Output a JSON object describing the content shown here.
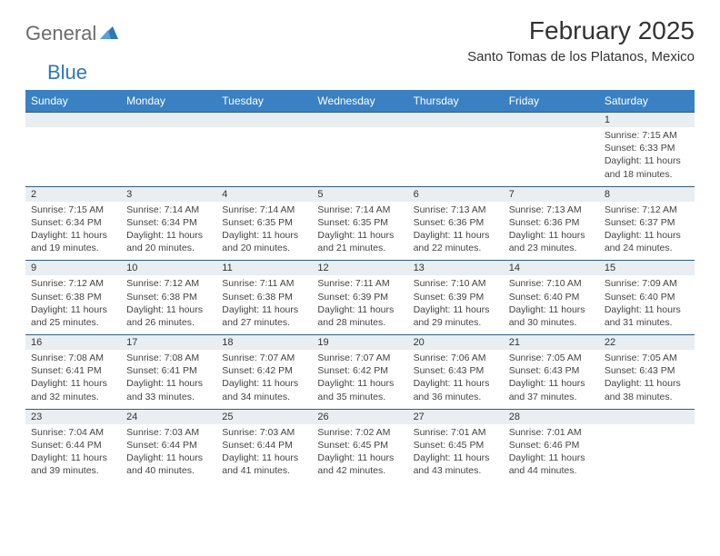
{
  "brand": {
    "general": "General",
    "blue": "Blue"
  },
  "title": "February 2025",
  "location": "Santo Tomas de los Platanos, Mexico",
  "colors": {
    "header_bg": "#3a81c4",
    "header_text": "#ffffff",
    "daynum_bg": "#e9eef2",
    "daynum_border": "#2f5e84",
    "body_text": "#444444",
    "logo_gray": "#6b6b6b",
    "logo_blue": "#2f78b7"
  },
  "day_headers": [
    "Sunday",
    "Monday",
    "Tuesday",
    "Wednesday",
    "Thursday",
    "Friday",
    "Saturday"
  ],
  "weeks": [
    [
      {
        "n": "",
        "sr": "",
        "ss": "",
        "dl": ""
      },
      {
        "n": "",
        "sr": "",
        "ss": "",
        "dl": ""
      },
      {
        "n": "",
        "sr": "",
        "ss": "",
        "dl": ""
      },
      {
        "n": "",
        "sr": "",
        "ss": "",
        "dl": ""
      },
      {
        "n": "",
        "sr": "",
        "ss": "",
        "dl": ""
      },
      {
        "n": "",
        "sr": "",
        "ss": "",
        "dl": ""
      },
      {
        "n": "1",
        "sr": "Sunrise: 7:15 AM",
        "ss": "Sunset: 6:33 PM",
        "dl": "Daylight: 11 hours and 18 minutes."
      }
    ],
    [
      {
        "n": "2",
        "sr": "Sunrise: 7:15 AM",
        "ss": "Sunset: 6:34 PM",
        "dl": "Daylight: 11 hours and 19 minutes."
      },
      {
        "n": "3",
        "sr": "Sunrise: 7:14 AM",
        "ss": "Sunset: 6:34 PM",
        "dl": "Daylight: 11 hours and 20 minutes."
      },
      {
        "n": "4",
        "sr": "Sunrise: 7:14 AM",
        "ss": "Sunset: 6:35 PM",
        "dl": "Daylight: 11 hours and 20 minutes."
      },
      {
        "n": "5",
        "sr": "Sunrise: 7:14 AM",
        "ss": "Sunset: 6:35 PM",
        "dl": "Daylight: 11 hours and 21 minutes."
      },
      {
        "n": "6",
        "sr": "Sunrise: 7:13 AM",
        "ss": "Sunset: 6:36 PM",
        "dl": "Daylight: 11 hours and 22 minutes."
      },
      {
        "n": "7",
        "sr": "Sunrise: 7:13 AM",
        "ss": "Sunset: 6:36 PM",
        "dl": "Daylight: 11 hours and 23 minutes."
      },
      {
        "n": "8",
        "sr": "Sunrise: 7:12 AM",
        "ss": "Sunset: 6:37 PM",
        "dl": "Daylight: 11 hours and 24 minutes."
      }
    ],
    [
      {
        "n": "9",
        "sr": "Sunrise: 7:12 AM",
        "ss": "Sunset: 6:38 PM",
        "dl": "Daylight: 11 hours and 25 minutes."
      },
      {
        "n": "10",
        "sr": "Sunrise: 7:12 AM",
        "ss": "Sunset: 6:38 PM",
        "dl": "Daylight: 11 hours and 26 minutes."
      },
      {
        "n": "11",
        "sr": "Sunrise: 7:11 AM",
        "ss": "Sunset: 6:38 PM",
        "dl": "Daylight: 11 hours and 27 minutes."
      },
      {
        "n": "12",
        "sr": "Sunrise: 7:11 AM",
        "ss": "Sunset: 6:39 PM",
        "dl": "Daylight: 11 hours and 28 minutes."
      },
      {
        "n": "13",
        "sr": "Sunrise: 7:10 AM",
        "ss": "Sunset: 6:39 PM",
        "dl": "Daylight: 11 hours and 29 minutes."
      },
      {
        "n": "14",
        "sr": "Sunrise: 7:10 AM",
        "ss": "Sunset: 6:40 PM",
        "dl": "Daylight: 11 hours and 30 minutes."
      },
      {
        "n": "15",
        "sr": "Sunrise: 7:09 AM",
        "ss": "Sunset: 6:40 PM",
        "dl": "Daylight: 11 hours and 31 minutes."
      }
    ],
    [
      {
        "n": "16",
        "sr": "Sunrise: 7:08 AM",
        "ss": "Sunset: 6:41 PM",
        "dl": "Daylight: 11 hours and 32 minutes."
      },
      {
        "n": "17",
        "sr": "Sunrise: 7:08 AM",
        "ss": "Sunset: 6:41 PM",
        "dl": "Daylight: 11 hours and 33 minutes."
      },
      {
        "n": "18",
        "sr": "Sunrise: 7:07 AM",
        "ss": "Sunset: 6:42 PM",
        "dl": "Daylight: 11 hours and 34 minutes."
      },
      {
        "n": "19",
        "sr": "Sunrise: 7:07 AM",
        "ss": "Sunset: 6:42 PM",
        "dl": "Daylight: 11 hours and 35 minutes."
      },
      {
        "n": "20",
        "sr": "Sunrise: 7:06 AM",
        "ss": "Sunset: 6:43 PM",
        "dl": "Daylight: 11 hours and 36 minutes."
      },
      {
        "n": "21",
        "sr": "Sunrise: 7:05 AM",
        "ss": "Sunset: 6:43 PM",
        "dl": "Daylight: 11 hours and 37 minutes."
      },
      {
        "n": "22",
        "sr": "Sunrise: 7:05 AM",
        "ss": "Sunset: 6:43 PM",
        "dl": "Daylight: 11 hours and 38 minutes."
      }
    ],
    [
      {
        "n": "23",
        "sr": "Sunrise: 7:04 AM",
        "ss": "Sunset: 6:44 PM",
        "dl": "Daylight: 11 hours and 39 minutes."
      },
      {
        "n": "24",
        "sr": "Sunrise: 7:03 AM",
        "ss": "Sunset: 6:44 PM",
        "dl": "Daylight: 11 hours and 40 minutes."
      },
      {
        "n": "25",
        "sr": "Sunrise: 7:03 AM",
        "ss": "Sunset: 6:44 PM",
        "dl": "Daylight: 11 hours and 41 minutes."
      },
      {
        "n": "26",
        "sr": "Sunrise: 7:02 AM",
        "ss": "Sunset: 6:45 PM",
        "dl": "Daylight: 11 hours and 42 minutes."
      },
      {
        "n": "27",
        "sr": "Sunrise: 7:01 AM",
        "ss": "Sunset: 6:45 PM",
        "dl": "Daylight: 11 hours and 43 minutes."
      },
      {
        "n": "28",
        "sr": "Sunrise: 7:01 AM",
        "ss": "Sunset: 6:46 PM",
        "dl": "Daylight: 11 hours and 44 minutes."
      },
      {
        "n": "",
        "sr": "",
        "ss": "",
        "dl": ""
      }
    ]
  ]
}
